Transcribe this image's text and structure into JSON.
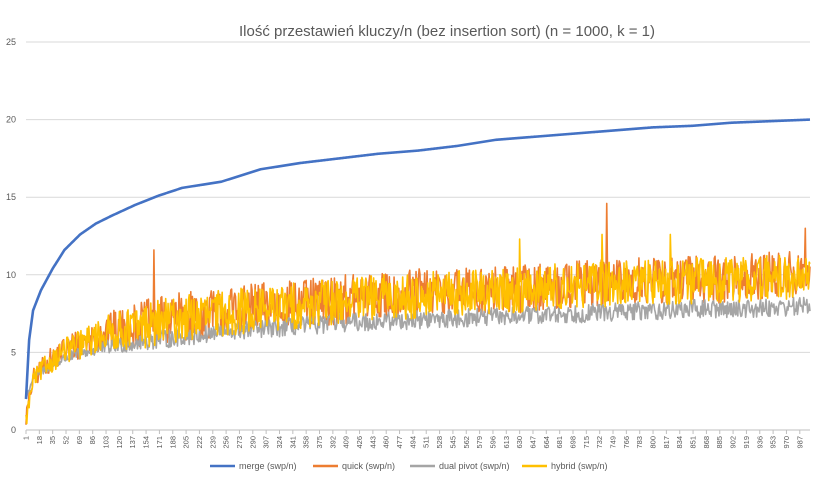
{
  "chart_data": {
    "type": "line",
    "title": "Ilość przestawień kluczy/n (bez insertion sort) (n = 1000, k = 1)",
    "xlabel": "",
    "ylabel": "",
    "xlim": [
      1,
      1000
    ],
    "ylim": [
      0,
      25
    ],
    "yticks": [
      0,
      5,
      10,
      15,
      20,
      25
    ],
    "xtick_labels": [
      "1",
      "18",
      "35",
      "52",
      "69",
      "86",
      "103",
      "120",
      "137",
      "154",
      "171",
      "188",
      "205",
      "222",
      "239",
      "256",
      "273",
      "290",
      "307",
      "324",
      "341",
      "358",
      "375",
      "392",
      "409",
      "426",
      "443",
      "460",
      "477",
      "494",
      "511",
      "528",
      "545",
      "562",
      "579",
      "596",
      "613",
      "630",
      "647",
      "664",
      "681",
      "698",
      "715",
      "732",
      "749",
      "766",
      "783",
      "800",
      "817",
      "834",
      "851",
      "868",
      "885",
      "902",
      "919",
      "936",
      "953",
      "970",
      "987"
    ],
    "grid": true,
    "legend_position": "bottom",
    "series": [
      {
        "name": "merge (swp/n)",
        "color": "#4472c4",
        "x": [
          1,
          5,
          10,
          20,
          35,
          50,
          70,
          90,
          110,
          140,
          170,
          200,
          250,
          300,
          350,
          400,
          450,
          500,
          550,
          600,
          650,
          700,
          750,
          800,
          850,
          900,
          950,
          1000
        ],
        "y": [
          2.0,
          5.8,
          7.7,
          9.0,
          10.4,
          11.6,
          12.6,
          13.3,
          13.8,
          14.5,
          15.1,
          15.6,
          16.0,
          16.8,
          17.2,
          17.5,
          17.8,
          18.0,
          18.3,
          18.7,
          18.9,
          19.1,
          19.3,
          19.5,
          19.6,
          19.8,
          19.9,
          20.0
        ]
      },
      {
        "name": "quick (swp/n)",
        "color": "#ed7d31",
        "x": [
          1,
          10,
          25,
          50,
          75,
          100,
          150,
          200,
          250,
          300,
          350,
          400,
          450,
          500,
          550,
          600,
          650,
          700,
          750,
          800,
          850,
          900,
          950,
          1000
        ],
        "y": [
          0.8,
          3.3,
          4.2,
          5.2,
          5.7,
          6.3,
          6.8,
          7.3,
          7.6,
          7.9,
          8.1,
          8.4,
          8.6,
          8.8,
          8.9,
          9.0,
          9.2,
          9.4,
          9.5,
          9.6,
          9.7,
          9.8,
          9.9,
          10.0
        ],
        "noise_amplitude": 1.6,
        "spikes": [
          {
            "x": 164,
            "y": 11.6
          },
          {
            "x": 741,
            "y": 14.6
          },
          {
            "x": 994,
            "y": 13.0
          }
        ]
      },
      {
        "name": "dual pivot (swp/n)",
        "color": "#a5a5a5",
        "x": [
          1,
          10,
          25,
          50,
          75,
          100,
          150,
          200,
          250,
          300,
          350,
          400,
          450,
          500,
          550,
          600,
          650,
          700,
          750,
          800,
          850,
          900,
          950,
          1000
        ],
        "y": [
          2.0,
          3.4,
          3.9,
          4.6,
          5.0,
          5.3,
          5.7,
          6.0,
          6.3,
          6.5,
          6.7,
          6.9,
          7.0,
          7.1,
          7.2,
          7.3,
          7.4,
          7.5,
          7.6,
          7.7,
          7.8,
          7.8,
          7.9,
          8.0
        ],
        "noise_amplitude": 0.6
      },
      {
        "name": "hybrid (swp/n)",
        "color": "#ffc000",
        "x": [
          1,
          10,
          25,
          50,
          75,
          100,
          150,
          200,
          250,
          300,
          350,
          400,
          450,
          500,
          550,
          600,
          650,
          700,
          750,
          800,
          850,
          900,
          950,
          1000
        ],
        "y": [
          0.6,
          3.2,
          4.1,
          5.1,
          5.6,
          6.2,
          6.7,
          7.2,
          7.5,
          7.8,
          8.0,
          8.3,
          8.5,
          8.7,
          8.8,
          8.9,
          9.1,
          9.3,
          9.4,
          9.5,
          9.6,
          9.7,
          9.8,
          9.9
        ],
        "noise_amplitude": 1.5,
        "spikes": [
          {
            "x": 630,
            "y": 12.3
          },
          {
            "x": 735,
            "y": 12.6
          },
          {
            "x": 822,
            "y": 12.6
          }
        ]
      }
    ]
  }
}
